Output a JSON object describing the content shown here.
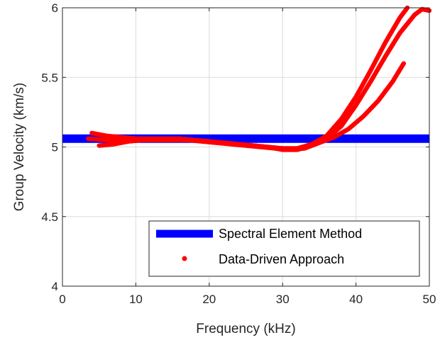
{
  "chart_data": {
    "type": "scatter",
    "title": "",
    "xlabel": "Frequency (kHz)",
    "ylabel": "Group Velocity (km/s)",
    "xlim": [
      0,
      50
    ],
    "ylim": [
      4,
      6
    ],
    "xticks": [
      0,
      10,
      20,
      30,
      40,
      50
    ],
    "yticks": [
      4,
      4.5,
      5,
      5.5,
      6
    ],
    "xtick_labels": [
      "0",
      "10",
      "20",
      "30",
      "40",
      "50"
    ],
    "ytick_labels": [
      "4",
      "4.5",
      "5",
      "5.5",
      "6"
    ],
    "grid": true,
    "legend_position": "bottom-right",
    "series": [
      {
        "name": "Spectral Element Method",
        "kind": "line",
        "color": "#0000ff",
        "x": [
          0,
          50
        ],
        "y": [
          5.06,
          5.06
        ]
      },
      {
        "name": "Data-Driven Approach",
        "kind": "scatter",
        "color": "#ff0000",
        "branches": [
          {
            "x": [
              4,
              6,
              8,
              10,
              12,
              14,
              16,
              18,
              20,
              22,
              24,
              26,
              28,
              30,
              32,
              34,
              36,
              38,
              40,
              42,
              44,
              46,
              47
            ],
            "y": [
              5.1,
              5.08,
              5.07,
              5.06,
              5.06,
              5.06,
              5.06,
              5.05,
              5.04,
              5.03,
              5.02,
              5.01,
              5.0,
              4.99,
              4.99,
              5.02,
              5.08,
              5.2,
              5.36,
              5.55,
              5.75,
              5.93,
              6.0
            ]
          },
          {
            "x": [
              3.5,
              6,
              8,
              10,
              12,
              14,
              16,
              18,
              20,
              22,
              24,
              26,
              28,
              30,
              32,
              34,
              36,
              38,
              40,
              42,
              44,
              46,
              48,
              49,
              50
            ],
            "y": [
              5.06,
              5.05,
              5.05,
              5.05,
              5.05,
              5.05,
              5.05,
              5.05,
              5.04,
              5.03,
              5.02,
              5.01,
              5.0,
              4.98,
              4.98,
              5.01,
              5.06,
              5.15,
              5.3,
              5.47,
              5.65,
              5.82,
              5.95,
              5.99,
              5.98
            ]
          },
          {
            "x": [
              5,
              7,
              9,
              11,
              13,
              15,
              17,
              19,
              21,
              23,
              25,
              27,
              29,
              31,
              33,
              35,
              37,
              39,
              41,
              43,
              45,
              46.5
            ],
            "y": [
              5.01,
              5.02,
              5.04,
              5.05,
              5.05,
              5.05,
              5.05,
              5.04,
              5.03,
              5.02,
              5.01,
              5.0,
              4.99,
              4.98,
              4.99,
              5.03,
              5.07,
              5.13,
              5.22,
              5.33,
              5.47,
              5.6
            ]
          }
        ]
      }
    ]
  }
}
